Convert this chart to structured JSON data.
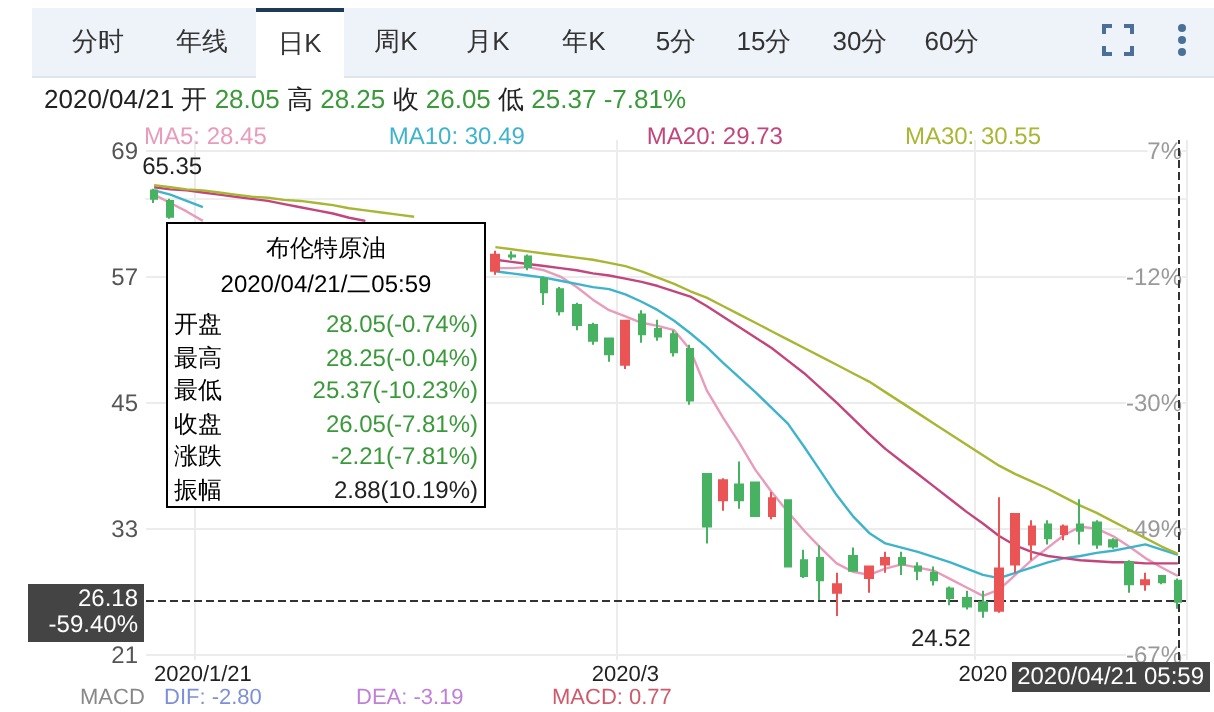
{
  "chart_data": {
    "type": "candlestick",
    "categories": [
      null,
      null,
      null,
      "2020/1/21",
      null,
      null,
      null,
      null,
      null,
      null,
      null,
      null,
      null,
      null,
      null,
      null,
      null,
      null,
      null,
      null,
      null,
      null,
      null,
      null,
      null,
      null,
      null,
      null,
      null,
      "2020/3",
      null,
      null,
      null,
      null,
      null,
      null,
      null,
      null,
      null,
      null,
      null,
      null,
      null,
      null,
      null,
      null,
      null,
      null,
      null,
      null,
      null,
      "2020",
      null,
      null,
      null,
      null,
      null,
      null,
      null,
      null,
      null,
      null,
      null,
      null
    ],
    "ohlc": [
      [
        65.2,
        65.35,
        64.0,
        64.4
      ],
      [
        64.2,
        64.4,
        62.5,
        62.7
      ],
      null,
      null,
      null,
      null,
      null,
      null,
      null,
      null,
      null,
      null,
      null,
      null,
      null,
      null,
      null,
      null,
      null,
      null,
      null,
      [
        57.55,
        59.45,
        57.17,
        59.07
      ],
      [
        59.0,
        59.4,
        58.6,
        58.9
      ],
      [
        58.9,
        59.1,
        57.6,
        57.9
      ],
      [
        56.8,
        57.0,
        54.3,
        55.5
      ],
      [
        55.8,
        56.0,
        53.3,
        53.7
      ],
      [
        54.3,
        54.5,
        51.9,
        52.4
      ],
      [
        52.4,
        52.6,
        50.5,
        50.9
      ],
      [
        51.1,
        51.1,
        48.9,
        49.6
      ],
      [
        48.6,
        52.9,
        48.2,
        52.8
      ],
      [
        53.4,
        53.8,
        50.7,
        51.5
      ],
      [
        52.0,
        52.9,
        50.9,
        51.3
      ],
      [
        51.5,
        51.9,
        49.4,
        49.8
      ],
      [
        50.1,
        50.5,
        44.8,
        45.2
      ],
      [
        38.2,
        38.2,
        31.6,
        33.2
      ],
      [
        35.7,
        37.8,
        34.7,
        37.6
      ],
      [
        37.2,
        39.4,
        34.9,
        35.7
      ],
      [
        37.4,
        37.4,
        34.2,
        34.2
      ],
      [
        34.2,
        36.5,
        33.9,
        35.9
      ],
      [
        35.7,
        35.7,
        29.4,
        29.4
      ],
      [
        30.0,
        31.0,
        28.3,
        28.5
      ],
      [
        30.2,
        31.4,
        26.2,
        28.1
      ],
      [
        26.9,
        28.8,
        24.7,
        27.7
      ],
      [
        30.4,
        31.2,
        29.0,
        29.0
      ],
      [
        28.3,
        29.4,
        26.9,
        29.4
      ],
      [
        29.6,
        30.8,
        28.8,
        30.2
      ],
      [
        30.2,
        30.8,
        28.6,
        29.6
      ],
      [
        29.4,
        29.8,
        28.1,
        29.0
      ],
      [
        28.8,
        29.4,
        27.6,
        28.1
      ],
      [
        27.3,
        27.5,
        25.7,
        26.4
      ],
      [
        26.4,
        27.1,
        25.3,
        25.6
      ],
      [
        26.0,
        27.1,
        24.52,
        25.2
      ],
      [
        25.2,
        36.0,
        25.0,
        29.2
      ],
      [
        29.6,
        34.4,
        28.8,
        34.4
      ],
      [
        31.5,
        33.8,
        30.0,
        33.2
      ],
      [
        33.4,
        33.8,
        31.5,
        32.1
      ],
      [
        32.5,
        33.4,
        31.9,
        33.2
      ],
      [
        33.4,
        35.8,
        31.5,
        32.8
      ],
      [
        33.6,
        33.8,
        31.1,
        31.5
      ],
      [
        31.9,
        32.1,
        31.1,
        31.3
      ],
      [
        29.8,
        30.0,
        26.9,
        27.7
      ],
      [
        27.7,
        28.8,
        27.1,
        28.1
      ],
      [
        28.5,
        28.5,
        27.7,
        27.9
      ],
      [
        28.05,
        28.25,
        25.37,
        26.05
      ]
    ],
    "series": [
      {
        "type": "line",
        "name": "MA5: 28.45",
        "color": "#e99bbb",
        "values": [
          64.8,
          64.0,
          63.2,
          62.3,
          null,
          null,
          null,
          null,
          null,
          null,
          null,
          null,
          null,
          null,
          null,
          null,
          null,
          null,
          null,
          null,
          null,
          57.8,
          57.8,
          57.9,
          57.6,
          57.0,
          56.0,
          54.8,
          53.8,
          53.2,
          52.6,
          52.3,
          51.9,
          50.0,
          46.2,
          43.6,
          41.2,
          38.6,
          36.5,
          34.6,
          32.8,
          31.2,
          29.7,
          28.9,
          28.6,
          29.2,
          29.6,
          29.3,
          29.0,
          28.2,
          27.4,
          26.6,
          27.2,
          28.6,
          30.0,
          31.2,
          32.4,
          33.2,
          33.0,
          32.3,
          31.3,
          30.2,
          29.3,
          28.5
        ]
      },
      {
        "type": "line",
        "name": "MA10: 30.49",
        "color": "#3fb3cc",
        "values": [
          65.2,
          64.8,
          64.2,
          63.6,
          null,
          null,
          null,
          null,
          null,
          null,
          null,
          null,
          null,
          null,
          null,
          null,
          null,
          null,
          null,
          null,
          null,
          57.5,
          57.3,
          57.1,
          56.9,
          56.6,
          56.3,
          56.0,
          55.8,
          55.3,
          54.6,
          53.8,
          52.8,
          51.6,
          50.3,
          48.8,
          47.4,
          46.0,
          44.5,
          43.0,
          40.8,
          38.5,
          36.2,
          34.2,
          32.6,
          31.6,
          31.2,
          30.8,
          30.3,
          29.8,
          29.2,
          28.6,
          28.3,
          28.8,
          29.3,
          29.8,
          30.2,
          30.4,
          30.7,
          30.9,
          31.2,
          31.5,
          31.0,
          30.5
        ]
      },
      {
        "type": "line",
        "name": "MA20: 29.73",
        "color": "#c2457c",
        "values": [
          65.5,
          65.3,
          65.2,
          65.0,
          64.8,
          64.6,
          64.4,
          64.2,
          63.9,
          63.6,
          63.3,
          63.0,
          62.6,
          62.3,
          null,
          null,
          null,
          null,
          null,
          null,
          null,
          58.6,
          58.4,
          58.2,
          58.0,
          57.8,
          57.6,
          57.3,
          57.1,
          56.8,
          56.5,
          56.1,
          55.6,
          55.1,
          54.2,
          53.2,
          52.2,
          51.2,
          50.2,
          49.0,
          47.8,
          46.4,
          45.0,
          43.5,
          42.0,
          40.6,
          39.4,
          38.2,
          37.0,
          35.8,
          34.6,
          33.5,
          32.3,
          31.4,
          30.8,
          30.4,
          30.2,
          30.0,
          29.9,
          29.8,
          29.8,
          29.7,
          29.7,
          29.7
        ]
      },
      {
        "type": "line",
        "name": "MA30: 30.55",
        "color": "#a9b634",
        "values": [
          65.7,
          65.5,
          65.3,
          65.2,
          65.0,
          64.8,
          64.6,
          64.5,
          64.3,
          64.2,
          64.0,
          63.8,
          63.5,
          63.3,
          63.1,
          62.9,
          62.7,
          null,
          null,
          null,
          null,
          59.8,
          59.6,
          59.4,
          59.2,
          59.0,
          58.8,
          58.6,
          58.3,
          58.0,
          57.5,
          56.9,
          56.3,
          55.6,
          55.0,
          54.2,
          53.4,
          52.6,
          51.8,
          51.0,
          50.2,
          49.4,
          48.6,
          47.8,
          47.0,
          46.0,
          45.0,
          44.0,
          43.0,
          42.0,
          41.0,
          40.0,
          39.0,
          38.2,
          37.5,
          36.8,
          36.0,
          35.2,
          34.5,
          33.7,
          32.9,
          32.1,
          31.3,
          30.6
        ]
      }
    ],
    "marker": "none",
    "ylim": [
      20.5,
      70
    ],
    "yticks": [
      21,
      33,
      45,
      57,
      69
    ],
    "y2lim": [
      -68.2,
      8.56
    ],
    "y2ticks": [
      {
        "value": 7.01,
        "label": "7%"
      },
      {
        "value": -11.6,
        "label": "-12%"
      },
      {
        "value": -30.21,
        "label": "-30%"
      },
      {
        "value": -48.82,
        "label": "-49%"
      },
      {
        "value": -67.43,
        "label": "-67%"
      }
    ],
    "grid": true,
    "legend": "top left",
    "ref_lines": [
      {
        "axis": "y",
        "value": 26.18,
        "label": "26.18\n-59.40%",
        "line_style": "dashed"
      },
      {
        "axis": "x",
        "label": "2020/04/21 05:59",
        "line_style": "dashed"
      }
    ],
    "annotations": [
      "分时",
      "年线",
      "日K",
      "周K",
      "月K",
      "年K",
      "5分",
      "15分",
      "30分",
      "60分",
      "2020/04/21 开 28.05 高 28.25 收 26.05 低 25.37 -7.81%",
      "布伦特原油",
      "2020/04/21/二05:59",
      "开盘",
      "28.05(-0.74%)",
      "最高",
      "28.25(-0.04%)",
      "最低",
      "25.37(-10.23%)",
      "收盘",
      "26.05(-7.81%)",
      "涨跌",
      "-2.21(-7.81%)",
      "振幅",
      "2.88(10.19%)",
      "MACD",
      "DIF: -2.80",
      "DEA: -3.19",
      "MACD: 0.77",
      "24.52",
      {
        "text": "65.35",
        "y": 65.35
      }
    ]
  }
}
